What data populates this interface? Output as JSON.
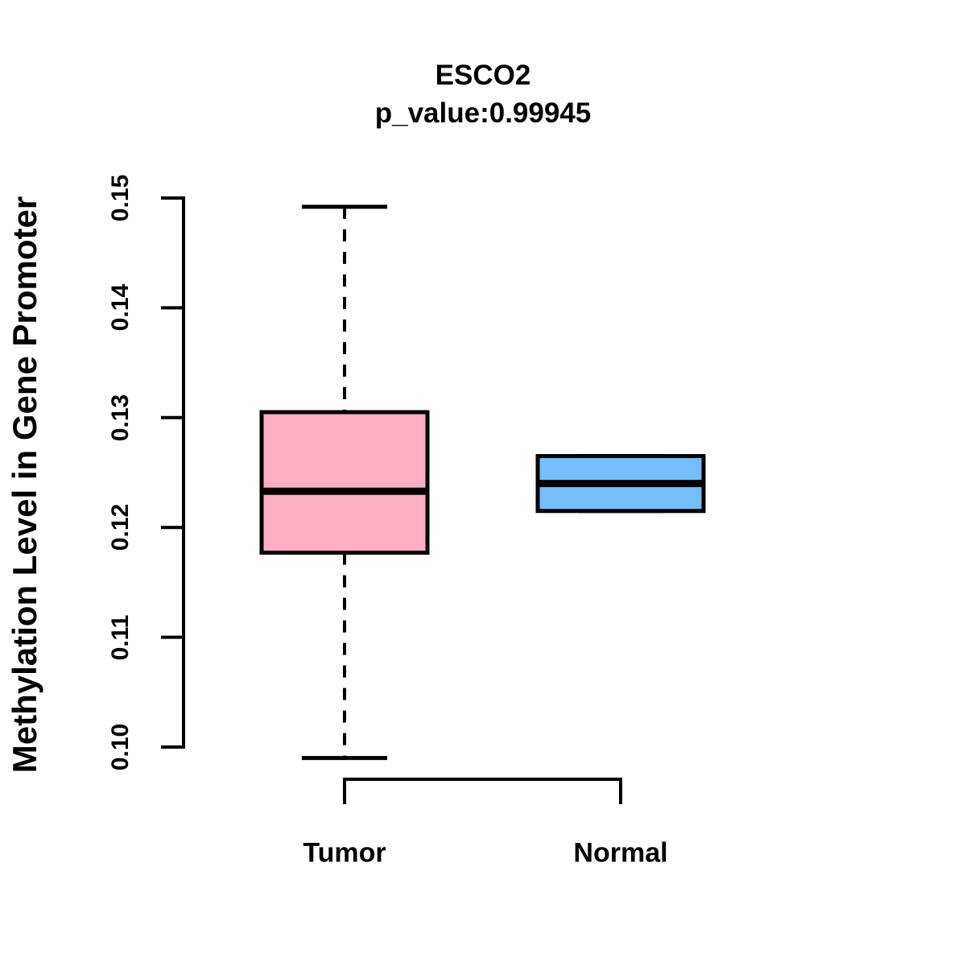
{
  "chart_data": {
    "type": "boxplot",
    "title": "ESCO2",
    "subtitle": "p_value:0.99945",
    "ylabel": "Methylation Level in Gene Promoter",
    "xlabel": "",
    "ylim": [
      0.098,
      0.151
    ],
    "yticks": [
      0.1,
      0.11,
      0.12,
      0.13,
      0.14,
      0.15
    ],
    "ytick_labels": [
      "0.10",
      "0.11",
      "0.12",
      "0.13",
      "0.14",
      "0.15"
    ],
    "grid": false,
    "legend": null,
    "categories": [
      "Tumor",
      "Normal"
    ],
    "groups": [
      {
        "label": "Tumor",
        "fill": "#FFAFC1",
        "whisker_low": 0.099,
        "q1": 0.1177,
        "median": 0.1233,
        "q3": 0.1305,
        "whisker_high": 0.1492
      },
      {
        "label": "Normal",
        "fill": "#74BFF8",
        "whisker_low": 0.1215,
        "q1": 0.1215,
        "median": 0.124,
        "q3": 0.1265,
        "whisker_high": 0.1265
      }
    ],
    "colors": {
      "tumor_fill": "#FFAFC1",
      "normal_fill": "#74BFF8",
      "stroke": "#000000",
      "background": "#FFFFFF"
    }
  }
}
